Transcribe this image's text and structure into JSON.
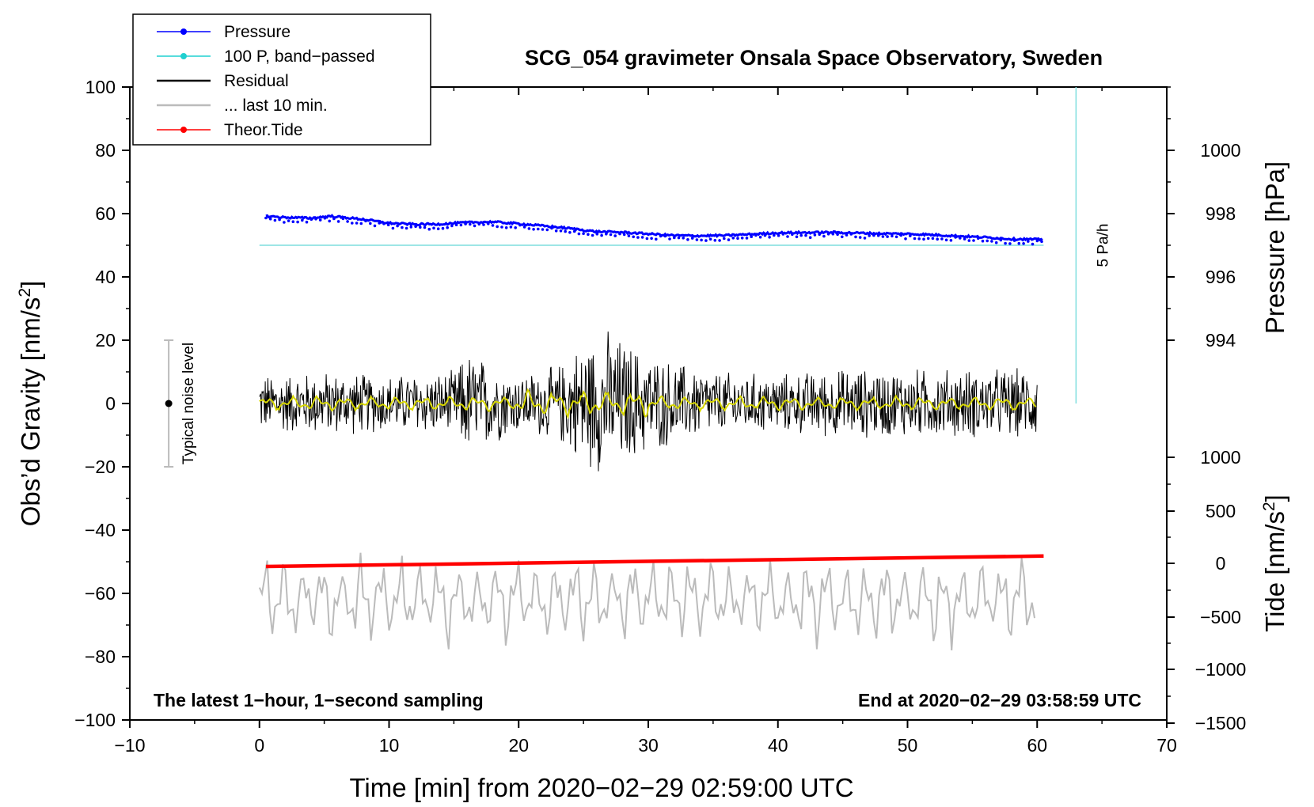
{
  "chart_data": {
    "type": "line",
    "title": "SCG_054 gravimeter Onsala Space Observatory, Sweden",
    "xlabel": "Time [min] from 2020−02−29 02:59:00 UTC",
    "ylabel_left": "Obs’d Gravity [nm/s²]",
    "ylabel_left_main": "Obs’d Gravity [nm/s",
    "ylabel_left_sup": "2",
    "ylabel_left_end": "]",
    "ylabel_pressure": "Pressure [hPa]",
    "ylabel_tide": "Tide [nm/s²]",
    "ylabel_tide_main": "Tide [nm/s",
    "ylabel_tide_sup": "2",
    "ylabel_tide_end": "]",
    "xlim": [
      -10,
      70
    ],
    "ylim": [
      -100,
      100
    ],
    "x_ticks": [
      "−10",
      "0",
      "10",
      "20",
      "30",
      "40",
      "50",
      "60",
      "70"
    ],
    "x_tick_values": [
      -10,
      0,
      10,
      20,
      30,
      40,
      50,
      60,
      70
    ],
    "y_ticks": [
      "100",
      "80",
      "60",
      "40",
      "20",
      "0",
      "−20",
      "−40",
      "−60",
      "−80",
      "−100"
    ],
    "y_tick_values": [
      100,
      80,
      60,
      40,
      20,
      0,
      -20,
      -40,
      -60,
      -80,
      -100
    ],
    "pressure_axis": {
      "ticks": [
        "1000",
        "998",
        "996",
        "994"
      ],
      "tick_values": [
        1000,
        998,
        996,
        994
      ],
      "gravity_equivalent": [
        80,
        60,
        40,
        20
      ]
    },
    "tide_axis": {
      "ticks": [
        "1000",
        "500",
        "0",
        "−500",
        "−1000",
        "−1500"
      ],
      "tick_values": [
        1000,
        500,
        0,
        -500,
        -1000,
        -1500
      ],
      "gravity_equivalent": [
        -17,
        -34,
        -50.5,
        -67.5,
        -84,
        -101
      ]
    },
    "legend": {
      "position": "top-left",
      "entries": [
        {
          "label": "Pressure",
          "color": "#0000ff",
          "style": "line-dot"
        },
        {
          "label": "100 P, band−passed",
          "color": "#20d0d0",
          "style": "line-dot"
        },
        {
          "label": "Residual",
          "color": "#000000",
          "style": "line"
        },
        {
          "label": "... last 10 min.",
          "color": "#bbbbbb",
          "style": "line"
        },
        {
          "label": "Theor.Tide",
          "color": "#ff0000",
          "style": "line-dot"
        }
      ]
    },
    "series": [
      {
        "name": "Pressure",
        "color": "#0000ff",
        "x": [
          0.5,
          2,
          4,
          5.5,
          8,
          10,
          12,
          14,
          16,
          18,
          20,
          22,
          24,
          26,
          28,
          30,
          32,
          34,
          36,
          38,
          40,
          42,
          44,
          46,
          48,
          50,
          52,
          54,
          56,
          58,
          60.5
        ],
        "y": [
          59.2,
          58.8,
          58.6,
          59.2,
          58.2,
          57.0,
          56.6,
          56.7,
          57.2,
          57.4,
          56.8,
          56.1,
          55.3,
          54.3,
          54.1,
          53.6,
          53.1,
          53.0,
          53.1,
          53.5,
          53.9,
          54.0,
          54.1,
          53.9,
          53.7,
          53.6,
          53.3,
          52.9,
          52.5,
          52.0,
          51.8
        ]
      },
      {
        "name": "100 P, band−passed (cyan)",
        "color": "#20d0d0",
        "x": [
          0,
          60.5
        ],
        "y": [
          50,
          50
        ]
      },
      {
        "name": "Residual",
        "color": "#000000",
        "x": [
          0,
          60
        ],
        "envelope_x": [
          0,
          5,
          10,
          15,
          16,
          20,
          23,
          25,
          27,
          30,
          35,
          40,
          45,
          50,
          55,
          60
        ],
        "envelope_amplitude": [
          10,
          11,
          10,
          11,
          18,
          10,
          13,
          22,
          25,
          17,
          11,
          10,
          12,
          12,
          12,
          12
        ]
      },
      {
        "name": "Residual smoothed (yellow)",
        "color": "#d8d800",
        "x": [
          0,
          60
        ],
        "amplitude": 2.5
      },
      {
        "name": "... last 10 min.",
        "color": "#bbbbbb",
        "x": [
          0,
          60
        ],
        "center": -62,
        "amplitude": 12
      },
      {
        "name": "Theor.Tide",
        "color": "#ff0000",
        "x": [
          0.5,
          60.5
        ],
        "y": [
          -51.5,
          -48.2
        ]
      }
    ],
    "annotations": {
      "noise_label": "Typical noise level",
      "noise_bar": {
        "x": -7,
        "center": 0,
        "half_range": 20
      },
      "rate_label": "5 Pa/h",
      "rate_bar": {
        "x": 63,
        "y_from": 0,
        "y_to": 100
      },
      "bottom_left": "The latest 1−hour, 1−second sampling",
      "bottom_right": "End at 2020−02−29 03:58:59 UTC"
    }
  }
}
